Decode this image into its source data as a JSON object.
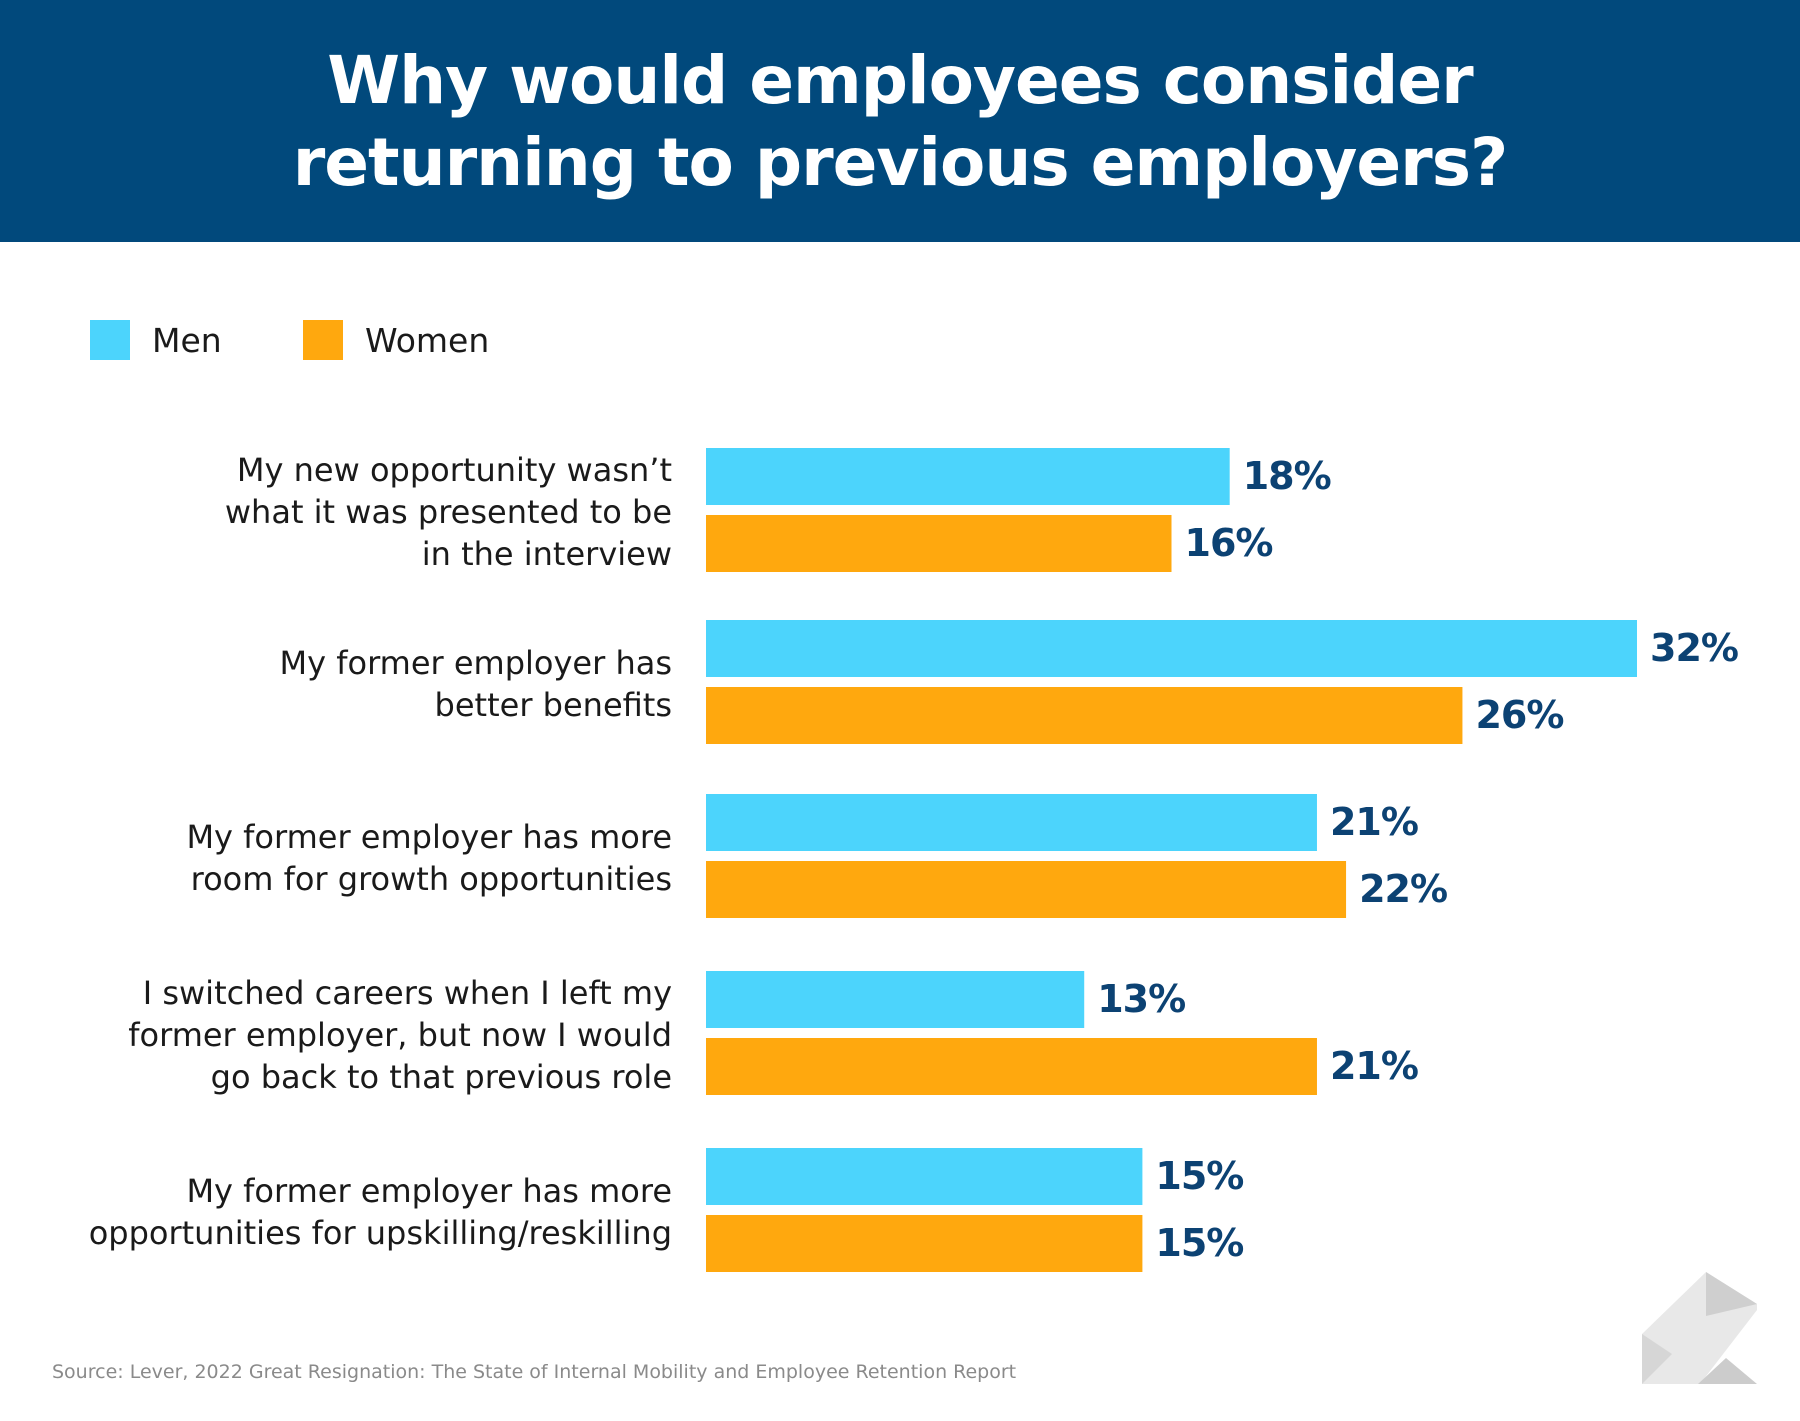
{
  "header": {
    "title_line1": "Why would employees consider",
    "title_line2": "returning to previous employers?"
  },
  "colors": {
    "header_bg": "#01497c",
    "men": "#4cd4fc",
    "women": "#ffa80e",
    "value_label": "#0c4273"
  },
  "legend": {
    "items": [
      {
        "label": "Men",
        "color": "#4cd4fc"
      },
      {
        "label": "Women",
        "color": "#ffa80e"
      }
    ]
  },
  "chart_data": {
    "type": "bar",
    "orientation": "horizontal",
    "title": "Why would employees consider returning to previous employers?",
    "categories": [
      [
        "My new opportunity wasn’t",
        "what it was presented to be",
        "in the interview"
      ],
      [
        "My former employer has",
        "better benefits"
      ],
      [
        "My former employer has more",
        "room for growth opportunities"
      ],
      [
        "I switched careers when I left my",
        "former employer, but now I would",
        "go back to that previous role"
      ],
      [
        "My former employer has more",
        "opportunities for upskilling/reskilling"
      ]
    ],
    "series": [
      {
        "name": "Men",
        "values": [
          18,
          32,
          21,
          13,
          15
        ],
        "labels": [
          "18%",
          "32%",
          "21%",
          "13%",
          "15%"
        ],
        "color": "#4cd4fc"
      },
      {
        "name": "Women",
        "values": [
          16,
          26,
          22,
          21,
          15
        ],
        "labels": [
          "16%",
          "26%",
          "22%",
          "21%",
          "15%"
        ],
        "color": "#ffa80e"
      }
    ],
    "xlabel": "",
    "ylabel": "",
    "xlim": [
      0,
      32
    ],
    "grid": false,
    "legend_position": "top-left"
  },
  "footer": {
    "source": "Source: Lever, 2022 Great Resignation: The State of Internal Mobility and Employee Retention Report"
  },
  "logo": {
    "icon": "lever-logo-icon"
  }
}
